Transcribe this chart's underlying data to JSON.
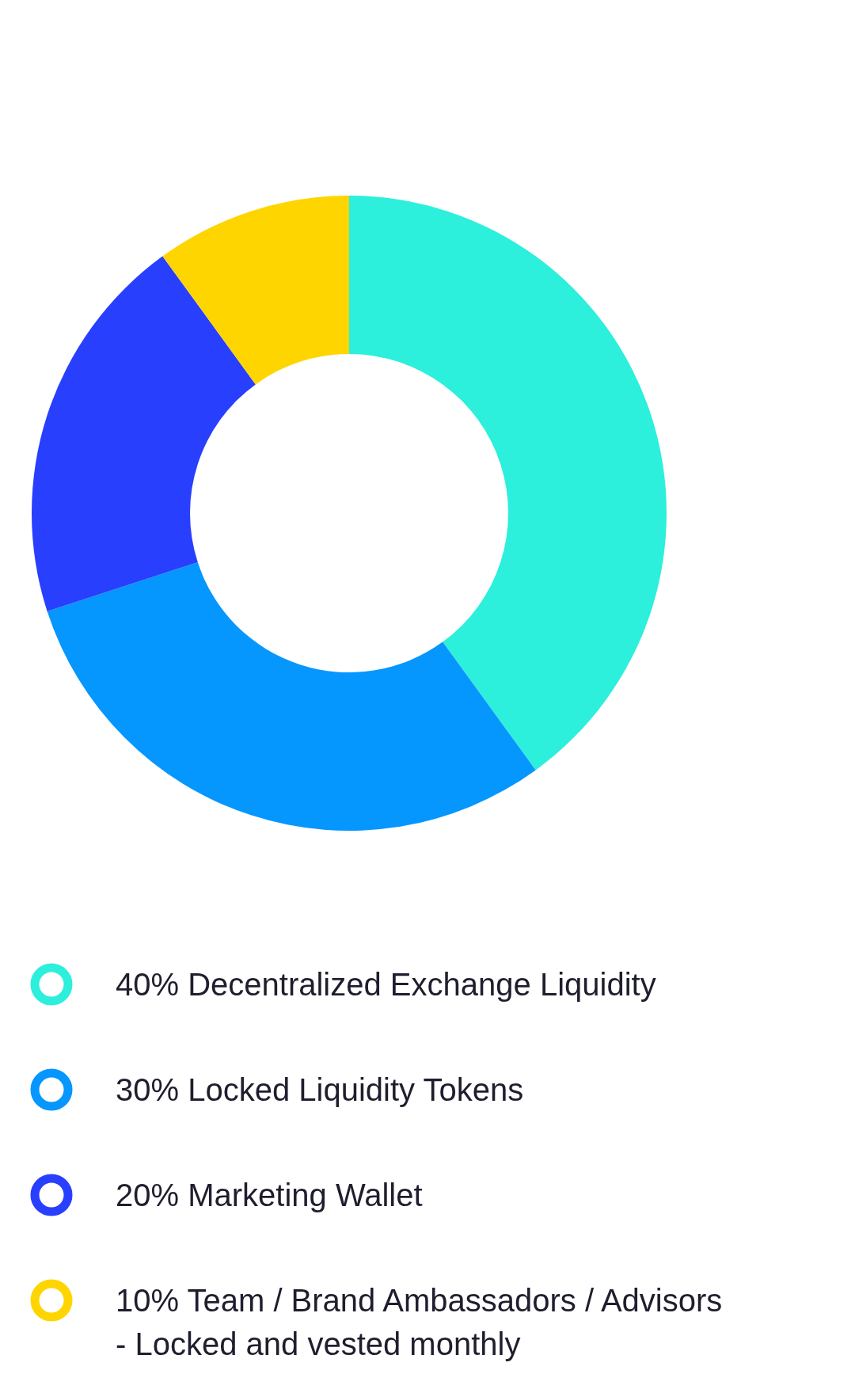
{
  "chart_data": {
    "type": "donut",
    "categories": [
      "40% Decentralized Exchange Liquidity",
      "30% Locked Liquidity Tokens",
      "20% Marketing Wallet",
      "10% Team / Brand Ambassadors / Advisors - Locked and vested monthly"
    ],
    "values": [
      40,
      30,
      20,
      10
    ],
    "colors": [
      "#2cefdc",
      "#0596fe",
      "#283ffe",
      "#ffd500"
    ],
    "legend": "bottom"
  }
}
